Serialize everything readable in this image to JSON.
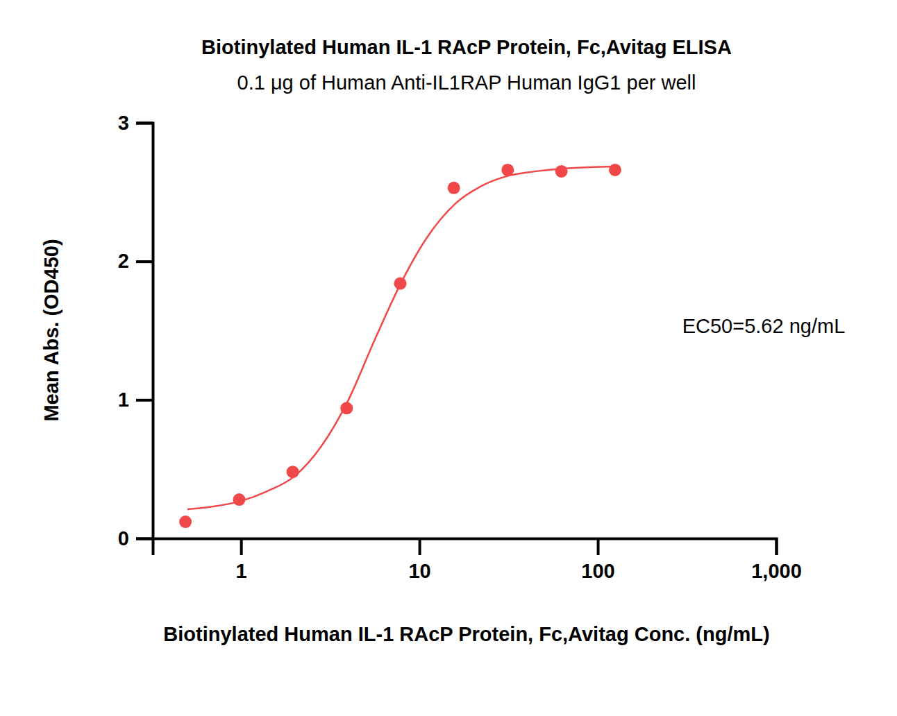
{
  "chart_data": {
    "type": "scatter",
    "title": "Biotinylated Human IL-1 RAcP Protein, Fc,Avitag ELISA",
    "subtitle": "0.1 μg of Human Anti-IL1RAP Human IgG1 per well",
    "x_label": "Biotinylated Human IL-1 RAcP Protein, Fc,Avitag Conc. (ng/mL)",
    "y_label": "Mean Abs. (OD450)",
    "annotations": [
      {
        "text": "EC50=5.62 ng/mL"
      }
    ],
    "log": "x",
    "grid": false,
    "xlim": [
      0.32,
      1000
    ],
    "xticks": [
      1,
      10,
      100,
      {
        "value": 1000,
        "label": "1,000"
      }
    ],
    "ylim": [
      0,
      3
    ],
    "yticks": [
      0,
      1,
      2,
      3
    ],
    "series": [
      {
        "type": "scatter",
        "marker": "circle",
        "color": "#f04848",
        "x": [
          0.488,
          0.977,
          1.95,
          3.91,
          7.81,
          15.6,
          31.25,
          62.5,
          125
        ],
        "values": [
          0.12,
          0.28,
          0.48,
          0.94,
          1.84,
          2.53,
          2.66,
          2.65,
          2.66
        ]
      },
      {
        "type": "line",
        "line_style": "solid",
        "color": "#f04848",
        "x": [
          0.5,
          0.7,
          1,
          1.4,
          2,
          2.8,
          4,
          5.6,
          8,
          11,
          16,
          22,
          32,
          45,
          64,
          90,
          125
        ],
        "values": [
          0.21,
          0.23,
          0.27,
          0.34,
          0.45,
          0.66,
          1.0,
          1.43,
          1.86,
          2.17,
          2.42,
          2.54,
          2.62,
          2.65,
          2.67,
          2.68,
          2.685
        ]
      }
    ]
  }
}
